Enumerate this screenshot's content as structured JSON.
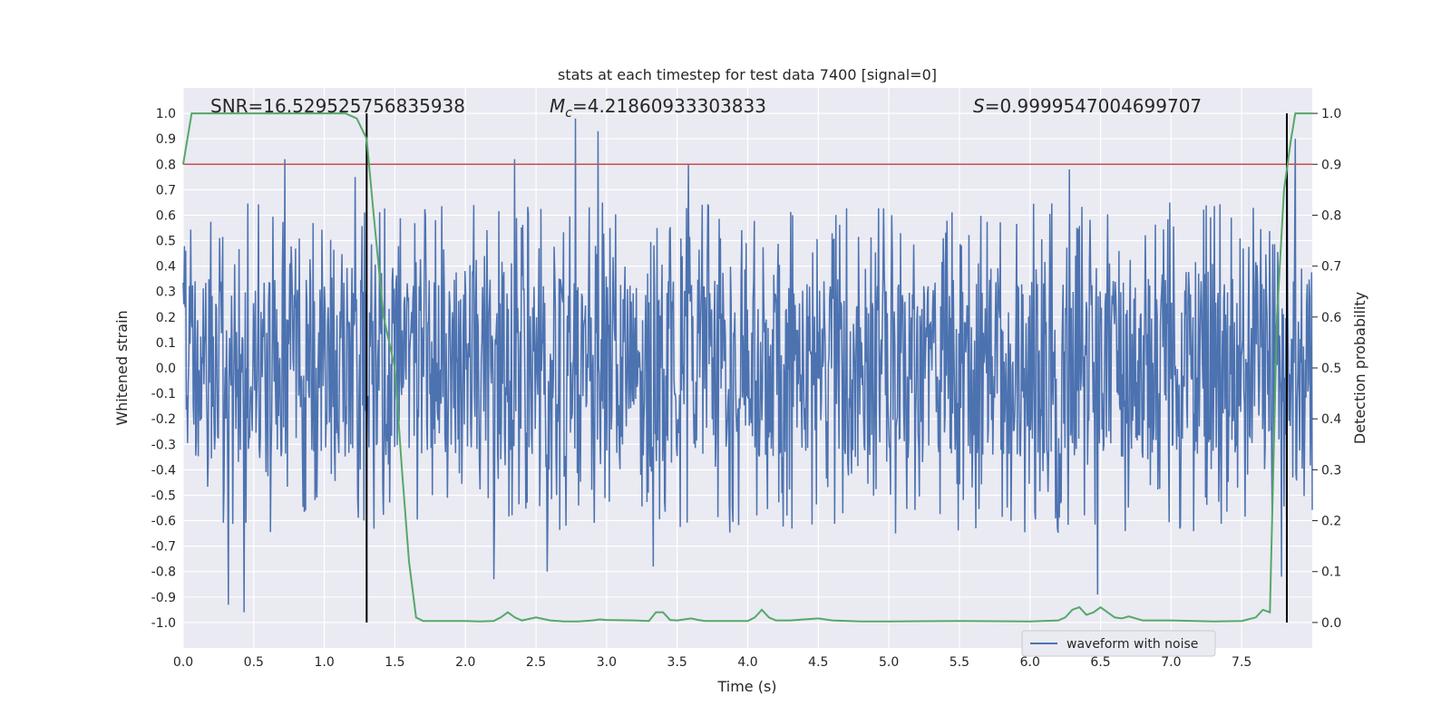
{
  "chart_data": {
    "type": "line",
    "title": "stats at each timestep for test data 7400 [signal=0]",
    "xlabel": "Time (s)",
    "ylabel": "Whitened strain",
    "y2label": "Detection probability",
    "xlim": [
      0.0,
      8.0
    ],
    "ylim": [
      -1.1,
      1.1
    ],
    "y2lim": [
      -0.05,
      1.05
    ],
    "xticks": [
      "0.0",
      "0.5",
      "1.0",
      "1.5",
      "2.0",
      "2.5",
      "3.0",
      "3.5",
      "4.0",
      "4.5",
      "5.0",
      "5.5",
      "6.0",
      "6.5",
      "7.0",
      "7.5"
    ],
    "yticks": [
      "1.0",
      "0.9",
      "0.8",
      "0.7",
      "0.6",
      "0.5",
      "0.4",
      "0.3",
      "0.2",
      "0.1",
      "0.0",
      "-0.1",
      "-0.2",
      "-0.3",
      "-0.4",
      "-0.5",
      "-0.6",
      "-0.7",
      "-0.8",
      "-0.9",
      "-1.0"
    ],
    "y2ticks": [
      "1.0",
      "0.9",
      "0.8",
      "0.7",
      "0.6",
      "0.5",
      "0.4",
      "0.3",
      "0.2",
      "0.1",
      "0.0"
    ],
    "grid": true,
    "legend_position": "lower-right",
    "annotations": {
      "snr": "SNR=16.529525756835938",
      "mc_symbol": "M",
      "mc_sub": "c",
      "mc_value": "=4.21860933303833",
      "s_symbol": "S",
      "s_value": "=0.9999547004699707"
    },
    "threshold": {
      "axis": "right",
      "value": 0.9,
      "color": "#c44e52"
    },
    "vertical_markers": [
      1.3,
      7.82
    ],
    "series": [
      {
        "name": "waveform with noise",
        "axis": "left",
        "color": "#4c72b0",
        "description_of_samples": "dense noise, amplitude ~±0.35 typical with spikes",
        "sample_rate_points": 1800,
        "spikes": [
          [
            0.72,
            0.82
          ],
          [
            1.22,
            0.75
          ],
          [
            2.35,
            0.82
          ],
          [
            2.78,
            0.98
          ],
          [
            2.94,
            0.93
          ],
          [
            3.58,
            0.8
          ],
          [
            6.28,
            0.78
          ],
          [
            7.82,
            0.88
          ],
          [
            7.88,
            0.9
          ],
          [
            0.32,
            -0.93
          ],
          [
            0.43,
            -0.96
          ],
          [
            1.3,
            -0.76
          ],
          [
            2.2,
            -0.83
          ],
          [
            2.58,
            -0.8
          ],
          [
            3.33,
            -0.78
          ],
          [
            6.48,
            -0.89
          ],
          [
            7.78,
            -0.82
          ]
        ]
      },
      {
        "name": "",
        "axis": "right",
        "color": "#55a868",
        "x": [
          0.0,
          0.06,
          0.1,
          0.5,
          1.0,
          1.15,
          1.23,
          1.3,
          1.35,
          1.42,
          1.5,
          1.55,
          1.6,
          1.65,
          1.7,
          1.8,
          2.0,
          2.1,
          2.2,
          2.25,
          2.3,
          2.35,
          2.4,
          2.5,
          2.6,
          2.7,
          2.8,
          2.9,
          2.95,
          3.0,
          3.2,
          3.3,
          3.35,
          3.4,
          3.45,
          3.5,
          3.6,
          3.65,
          3.7,
          3.8,
          4.0,
          4.05,
          4.1,
          4.15,
          4.2,
          4.3,
          4.5,
          4.6,
          4.8,
          5.0,
          5.5,
          6.0,
          6.2,
          6.25,
          6.3,
          6.35,
          6.4,
          6.45,
          6.5,
          6.55,
          6.6,
          6.65,
          6.7,
          6.75,
          6.8,
          6.9,
          7.0,
          7.3,
          7.5,
          7.6,
          7.65,
          7.7,
          7.75,
          7.8,
          7.85,
          7.88,
          7.93,
          8.0
        ],
        "y": [
          0.9,
          1.0,
          1.0,
          1.0,
          1.0,
          1.0,
          0.99,
          0.95,
          0.8,
          0.6,
          0.5,
          0.3,
          0.12,
          0.01,
          0.003,
          0.003,
          0.003,
          0.002,
          0.003,
          0.01,
          0.02,
          0.01,
          0.004,
          0.01,
          0.004,
          0.002,
          0.002,
          0.004,
          0.006,
          0.005,
          0.004,
          0.003,
          0.02,
          0.02,
          0.005,
          0.004,
          0.008,
          0.005,
          0.003,
          0.003,
          0.003,
          0.01,
          0.025,
          0.01,
          0.004,
          0.004,
          0.008,
          0.004,
          0.002,
          0.002,
          0.003,
          0.002,
          0.004,
          0.01,
          0.025,
          0.03,
          0.015,
          0.02,
          0.03,
          0.02,
          0.01,
          0.008,
          0.012,
          0.008,
          0.004,
          0.004,
          0.004,
          0.002,
          0.003,
          0.01,
          0.025,
          0.02,
          0.6,
          0.85,
          0.95,
          1.0,
          1.0,
          1.0
        ]
      }
    ]
  }
}
